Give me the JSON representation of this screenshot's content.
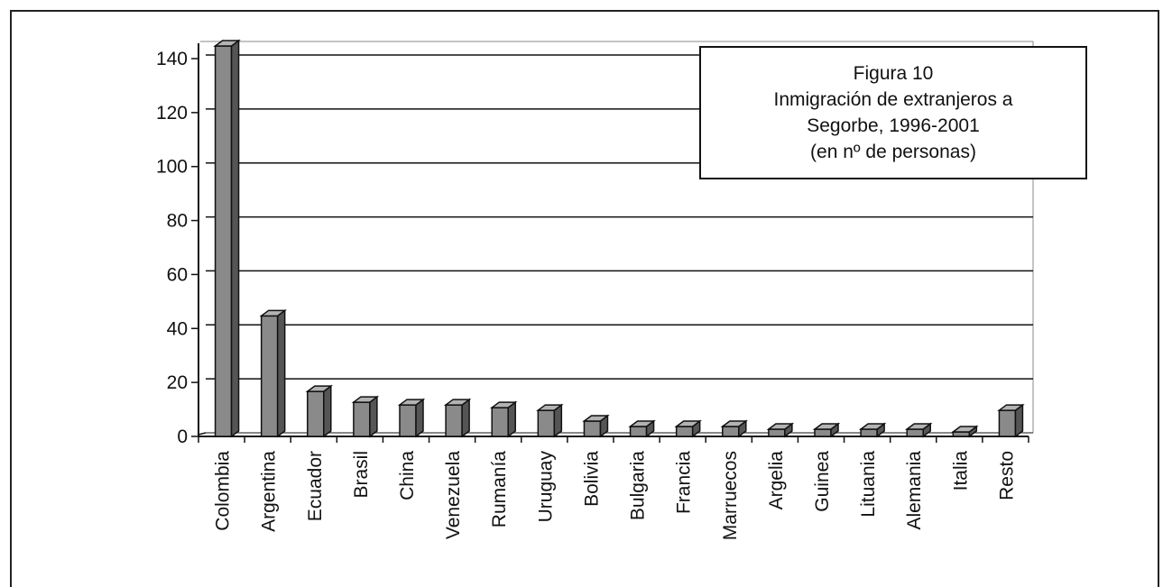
{
  "chart_data": {
    "type": "bar",
    "title_lines": [
      "Figura 10",
      "Inmigración de extranjeros a",
      "Segorbe, 1996-2001",
      "(en nº de personas)"
    ],
    "xlabel": "",
    "ylabel": "",
    "ylim": [
      0,
      140
    ],
    "yticks": [
      "0",
      "20",
      "40",
      "60",
      "80",
      "100",
      "120",
      "140"
    ],
    "grid": true,
    "categories": [
      "Colombia",
      "Argentina",
      "Ecuador",
      "Brasil",
      "China",
      "Venezuela",
      "Rumanía",
      "Uruguay",
      "Bolivia",
      "Bulgaria",
      "Francia",
      "Marruecos",
      "Argelia",
      "Guinea",
      "Lituania",
      "Alemania",
      "Italia",
      "Resto"
    ],
    "values": [
      144,
      44,
      16,
      12,
      11,
      11,
      10,
      9,
      5,
      3,
      3,
      3,
      2,
      2,
      2,
      2,
      1,
      9
    ],
    "colors": {
      "bar_front": "#8a8a8a",
      "bar_top": "#b3b3b3",
      "bar_side": "#555555",
      "line": "#111111"
    }
  }
}
